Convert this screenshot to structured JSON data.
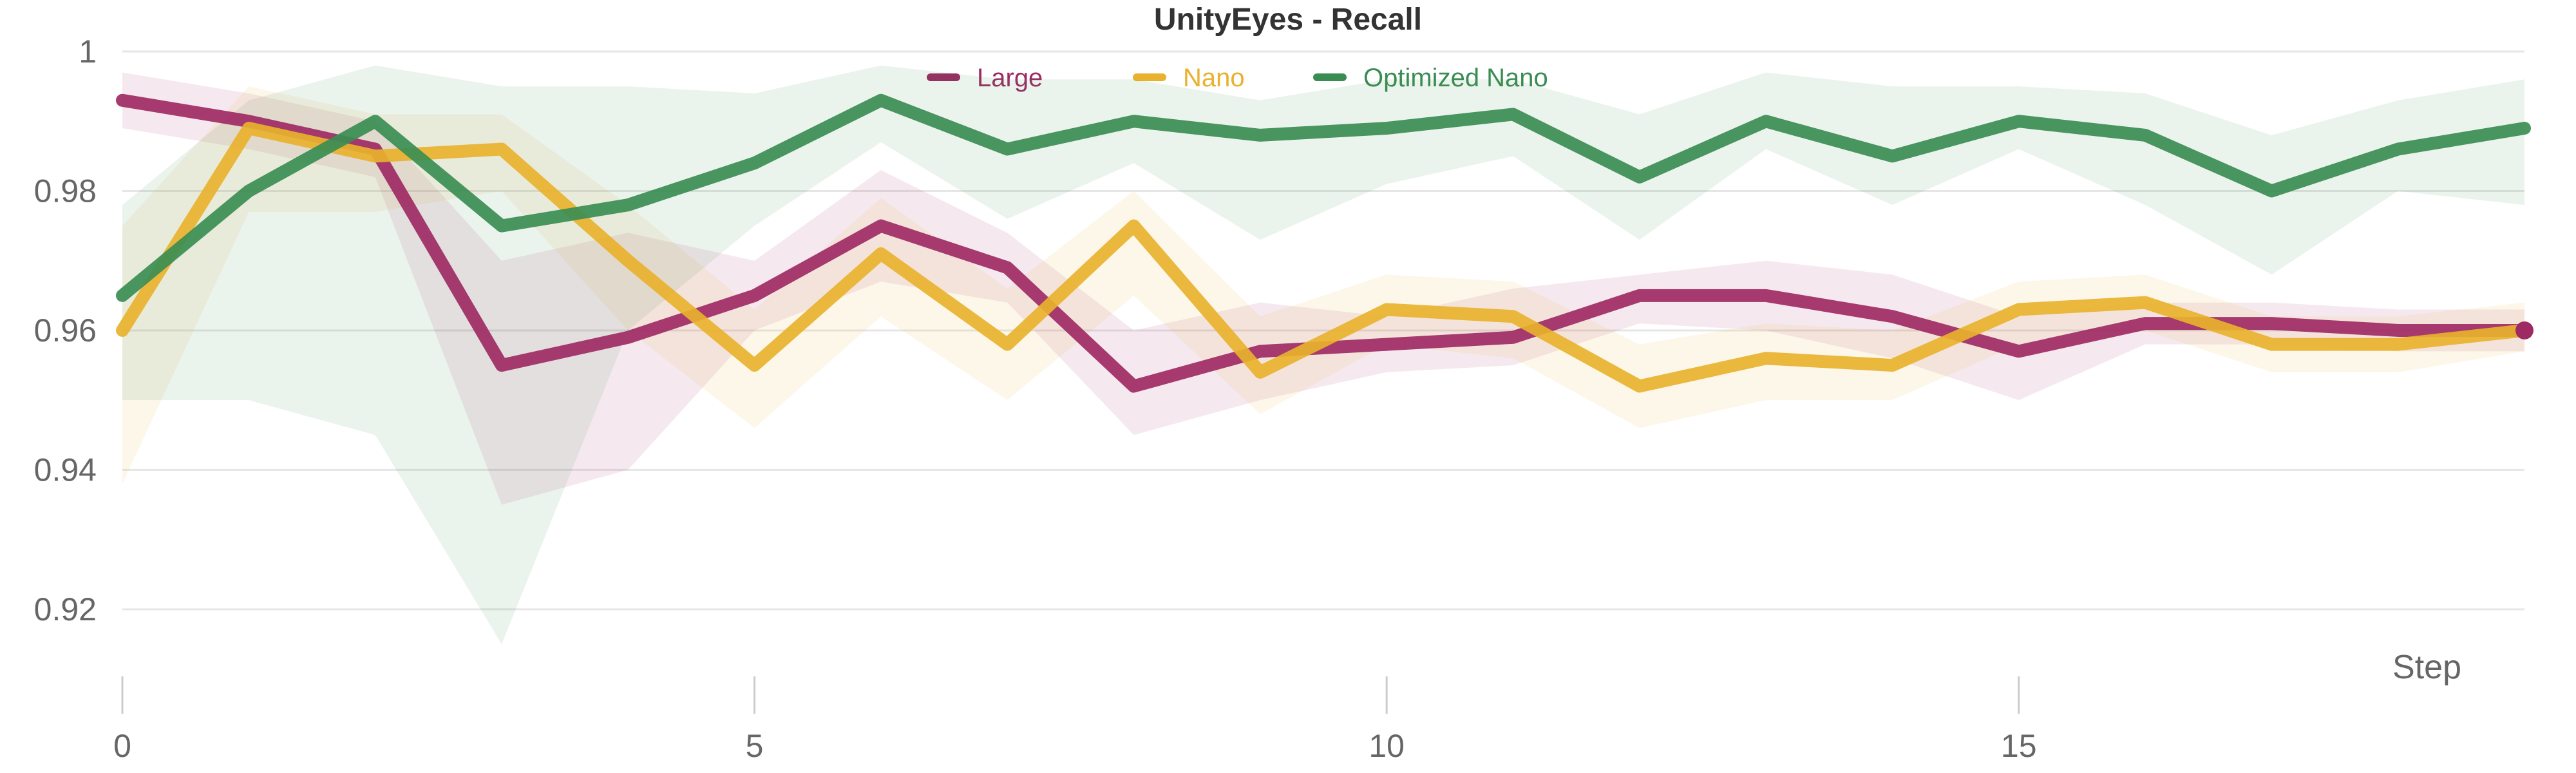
{
  "chart_data": {
    "type": "line",
    "title": "UnityEyes - Recall",
    "xlabel": "Step",
    "ylabel": "",
    "xlim": [
      0,
      19
    ],
    "ylim": [
      0.915,
      1.0
    ],
    "x_ticks": [
      0,
      5,
      10,
      15
    ],
    "x_tick_labels": [
      "0",
      "5",
      "10",
      "15"
    ],
    "y_ticks": [
      1,
      0.98,
      0.96,
      0.94,
      0.92
    ],
    "y_tick_labels": [
      "1",
      "0.98",
      "0.96",
      "0.94",
      "0.92"
    ],
    "grid": "horizontal",
    "legend_position": "top-center",
    "x": [
      0,
      1,
      2,
      3,
      4,
      5,
      6,
      7,
      8,
      9,
      10,
      11,
      12,
      13,
      14,
      15,
      16,
      17,
      18,
      19
    ],
    "series": [
      {
        "name": "Large",
        "color": "#9e2a64",
        "values": [
          0.993,
          0.99,
          0.986,
          0.955,
          0.959,
          0.965,
          0.975,
          0.969,
          0.952,
          0.957,
          0.958,
          0.959,
          0.965,
          0.965,
          0.962,
          0.957,
          0.961,
          0.961,
          0.96,
          0.96
        ],
        "band_upper": [
          0.997,
          0.994,
          0.99,
          0.97,
          0.974,
          0.97,
          0.983,
          0.974,
          0.96,
          0.964,
          0.962,
          0.966,
          0.968,
          0.97,
          0.968,
          0.962,
          0.964,
          0.964,
          0.963,
          0.963
        ],
        "band_lower": [
          0.989,
          0.986,
          0.982,
          0.935,
          0.94,
          0.96,
          0.967,
          0.964,
          0.945,
          0.95,
          0.954,
          0.955,
          0.961,
          0.96,
          0.956,
          0.95,
          0.958,
          0.958,
          0.957,
          0.957
        ]
      },
      {
        "name": "Nano",
        "color": "#e8b22e",
        "values": [
          0.96,
          0.989,
          0.985,
          0.986,
          0.97,
          0.955,
          0.971,
          0.958,
          0.975,
          0.954,
          0.963,
          0.962,
          0.952,
          0.956,
          0.955,
          0.963,
          0.964,
          0.958,
          0.958,
          0.96
        ],
        "band_upper": [
          0.975,
          0.995,
          0.991,
          0.991,
          0.978,
          0.963,
          0.979,
          0.966,
          0.98,
          0.962,
          0.968,
          0.967,
          0.958,
          0.961,
          0.96,
          0.967,
          0.968,
          0.962,
          0.962,
          0.964
        ],
        "band_lower": [
          0.938,
          0.977,
          0.977,
          0.98,
          0.96,
          0.946,
          0.962,
          0.95,
          0.965,
          0.948,
          0.958,
          0.956,
          0.946,
          0.95,
          0.95,
          0.958,
          0.96,
          0.954,
          0.954,
          0.957
        ]
      },
      {
        "name": "Optimized Nano",
        "color": "#3a8d52",
        "values": [
          0.965,
          0.98,
          0.99,
          0.975,
          0.978,
          0.984,
          0.993,
          0.986,
          0.99,
          0.988,
          0.989,
          0.991,
          0.982,
          0.99,
          0.985,
          0.99,
          0.988,
          0.98,
          0.986,
          0.989
        ],
        "band_upper": [
          0.978,
          0.993,
          0.998,
          0.995,
          0.995,
          0.994,
          0.998,
          0.996,
          0.996,
          0.993,
          0.996,
          0.996,
          0.991,
          0.997,
          0.995,
          0.995,
          0.994,
          0.988,
          0.993,
          0.996
        ],
        "band_lower": [
          0.95,
          0.95,
          0.945,
          0.915,
          0.96,
          0.975,
          0.987,
          0.976,
          0.984,
          0.973,
          0.981,
          0.985,
          0.973,
          0.986,
          0.978,
          0.986,
          0.978,
          0.968,
          0.98,
          0.978
        ]
      }
    ]
  }
}
